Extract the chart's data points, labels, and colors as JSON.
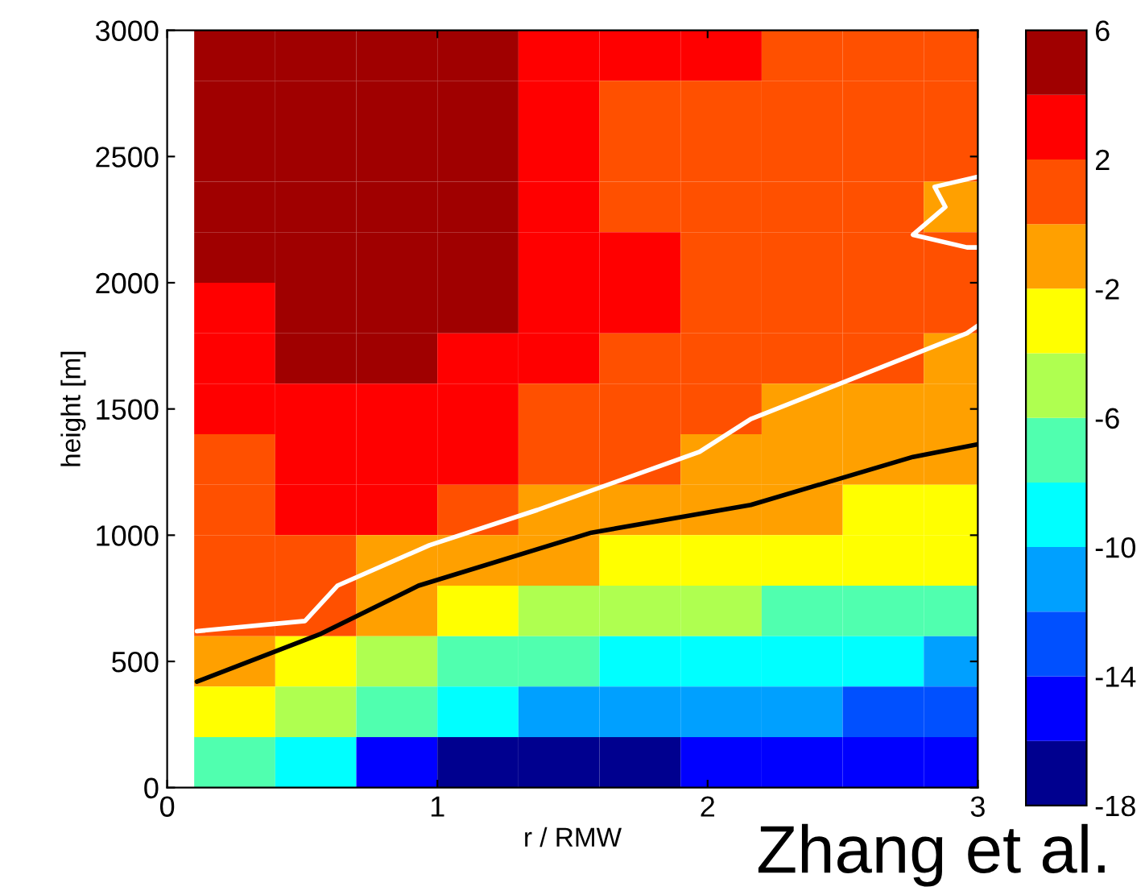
{
  "chart_data": {
    "type": "heatmap",
    "xlabel": "r / RMW",
    "ylabel": "height [m]",
    "annotations": [
      "Zhang et al."
    ],
    "x": [
      0.25,
      0.55,
      0.85,
      1.15,
      1.45,
      1.75,
      2.05,
      2.35,
      2.65,
      2.95
    ],
    "y": [
      2900,
      2700,
      2500,
      2300,
      2100,
      1900,
      1700,
      1500,
      1300,
      1100,
      900,
      700,
      500,
      300,
      100
    ],
    "cells": [
      [
        5,
        5,
        5,
        5,
        3,
        3,
        3,
        1,
        1,
        1
      ],
      [
        5,
        5,
        5,
        5,
        3,
        1,
        1,
        1,
        1,
        1
      ],
      [
        5,
        5,
        5,
        5,
        3,
        1,
        1,
        1,
        1,
        1
      ],
      [
        5,
        5,
        5,
        5,
        3,
        1,
        1,
        1,
        1,
        -1
      ],
      [
        5,
        5,
        5,
        5,
        3,
        3,
        1,
        1,
        1,
        1
      ],
      [
        3,
        5,
        5,
        5,
        3,
        3,
        1,
        1,
        1,
        1
      ],
      [
        3,
        5,
        5,
        3,
        3,
        1,
        1,
        1,
        1,
        -1
      ],
      [
        3,
        3,
        3,
        3,
        1,
        1,
        1,
        -1,
        -1,
        -1
      ],
      [
        1,
        3,
        3,
        3,
        1,
        1,
        -1,
        -1,
        -1,
        -1
      ],
      [
        1,
        3,
        3,
        1,
        -1,
        -1,
        -1,
        -1,
        -3,
        -3
      ],
      [
        1,
        1,
        -1,
        -1,
        -1,
        -3,
        -3,
        -3,
        -3,
        -3
      ],
      [
        1,
        1,
        -1,
        -3,
        -5,
        -5,
        -5,
        -7,
        -7,
        -7
      ],
      [
        -1,
        -3,
        -5,
        -7,
        -7,
        -9,
        -9,
        -9,
        -9,
        -11
      ],
      [
        -3,
        -5,
        -7,
        -9,
        -11,
        -11,
        -11,
        -11,
        -13,
        -13
      ],
      [
        -7,
        -9,
        -15,
        -17,
        -17,
        -17,
        -15,
        -15,
        -15,
        -15
      ]
    ],
    "colors": [
      "#00008f",
      "#0000ff",
      "#0050ff",
      "#00a0ff",
      "#00ffff",
      "#50ffaf",
      "#afff50",
      "#ffff00",
      "#ffa000",
      "#ff5000",
      "#ff0000",
      "#a00000"
    ],
    "clim": [
      -18,
      6
    ],
    "cticks": [
      -18,
      -14,
      -10,
      -6,
      -2,
      2,
      6
    ],
    "xlim": [
      0,
      3
    ],
    "xticks": [
      0,
      1,
      2,
      3
    ],
    "ylim": [
      0,
      3000
    ],
    "yticks": [
      0,
      500,
      1000,
      1500,
      2000,
      2500,
      3000
    ],
    "series": [
      {
        "type": "line",
        "color": "#ffffff",
        "x": [
          0.11,
          0.51,
          0.63,
          0.97,
          1.37,
          1.97,
          2.16,
          2.96,
          3.0
        ],
        "values": [
          620,
          660,
          800,
          960,
          1100,
          1330,
          1460,
          1800,
          1830
        ]
      },
      {
        "type": "line",
        "color": "#ffffff",
        "x": [
          3.0,
          2.84,
          2.88,
          2.76,
          2.96,
          3.0
        ],
        "values": [
          2420,
          2380,
          2300,
          2190,
          2140,
          2140
        ]
      },
      {
        "type": "line",
        "color": "#000000",
        "x": [
          0.11,
          0.57,
          0.93,
          1.57,
          2.16,
          2.76,
          3.0
        ],
        "values": [
          420,
          610,
          800,
          1010,
          1120,
          1310,
          1360
        ]
      }
    ],
    "grid": false
  }
}
